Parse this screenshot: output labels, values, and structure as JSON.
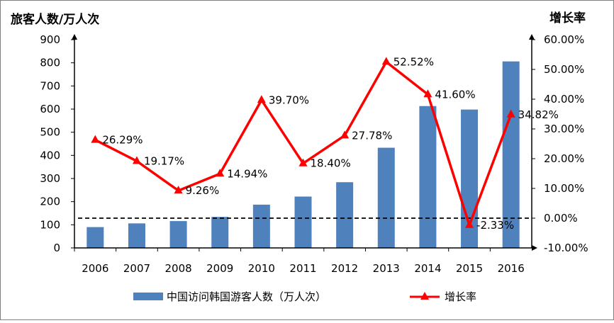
{
  "chart_data": {
    "type": "bar+line",
    "left_axis_title": "旅客人数/万人次",
    "right_axis_title": "增长率",
    "categories": [
      "2006",
      "2007",
      "2008",
      "2009",
      "2010",
      "2011",
      "2012",
      "2013",
      "2014",
      "2015",
      "2016"
    ],
    "series": [
      {
        "name": "中国访问韩国游客人数（万人次）",
        "type": "bar",
        "axis": "left",
        "color": "#4f81bd",
        "values": [
          90,
          106,
          116,
          134,
          187,
          222,
          284,
          433,
          613,
          598,
          806
        ]
      },
      {
        "name": "增长率",
        "type": "line",
        "axis": "right",
        "color": "#ff0000",
        "marker": "triangle",
        "values": [
          26.29,
          19.17,
          9.26,
          14.94,
          39.7,
          18.4,
          27.78,
          52.52,
          41.6,
          -2.33,
          34.82
        ],
        "labels": [
          "26.29%",
          "19.17%",
          "9.26%",
          "14.94%",
          "39.70%",
          "18.40%",
          "27.78%",
          "52.52%",
          "41.60%",
          "-2.33%",
          "34.82%"
        ]
      }
    ],
    "left_axis": {
      "min": 0,
      "max": 900,
      "step": 100,
      "ticks": [
        "0",
        "100",
        "200",
        "300",
        "400",
        "500",
        "600",
        "700",
        "800",
        "900"
      ]
    },
    "right_axis": {
      "min": -10,
      "max": 60,
      "step": 10,
      "ticks": [
        "-10.00%",
        "0.00%",
        "10.00%",
        "20.00%",
        "30.00%",
        "40.00%",
        "50.00%",
        "60.00%"
      ]
    },
    "reference_line": {
      "axis": "right",
      "value": 0,
      "style": "dashed",
      "color": "#000000"
    },
    "grid": false,
    "legend_position": "bottom"
  }
}
